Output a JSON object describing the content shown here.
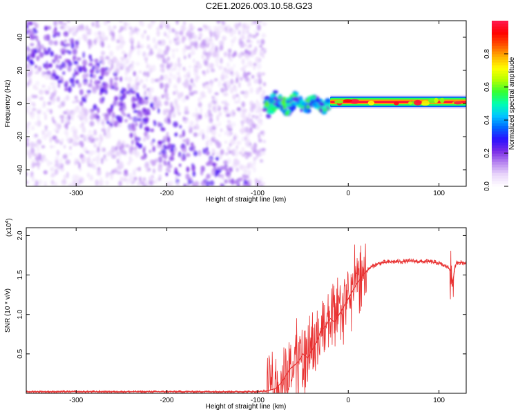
{
  "title": "C2E1.2026.003.10.58.G23",
  "chart_data": [
    {
      "type": "heatmap",
      "xlabel": "Height of straight line (km)",
      "ylabel": "Frequency (Hz)",
      "xlim": [
        -355,
        130
      ],
      "ylim": [
        -50,
        50
      ],
      "x_ticks": [
        -300,
        -200,
        -100,
        0,
        100
      ],
      "y_ticks": [
        -40,
        -20,
        0,
        20,
        40
      ],
      "colorbar": {
        "label": "Normalized spectral amplitude",
        "range": [
          0,
          1
        ],
        "ticks": [
          0.0,
          0.2,
          0.4,
          0.6,
          0.8
        ],
        "colors": [
          "#ffffff",
          "#ead8fb",
          "#b888f0",
          "#7a2be6",
          "#2a10ff",
          "#0066ff",
          "#00c8ff",
          "#00ffb0",
          "#33ff33",
          "#b4ff00",
          "#ffff00",
          "#ffb000",
          "#ff5000",
          "#ff0000",
          "#ff1a50"
        ]
      },
      "regions": [
        {
          "name": "noise",
          "x_range": [
            -355,
            -92
          ],
          "freq_range": [
            -50,
            50
          ],
          "amplitude_range": [
            0.0,
            0.25
          ]
        },
        {
          "name": "signal-onset",
          "x_range": [
            -92,
            -20
          ],
          "freq_center": 0,
          "freq_halfwidth": 6,
          "amplitude_range": [
            0.2,
            0.6
          ]
        },
        {
          "name": "carrier",
          "x_range": [
            -20,
            130
          ],
          "freq_center": 1,
          "freq_halfwidth": 2,
          "amplitude_range": [
            0.6,
            1.0
          ]
        }
      ]
    },
    {
      "type": "line",
      "xlabel": "Height of straight line (km)",
      "ylabel": "SNR (10 * v/v)",
      "ylabel_scale": "(x10",
      "ylabel_exp": "4",
      "xlim": [
        -355,
        130
      ],
      "ylim": [
        0,
        2.1
      ],
      "x_ticks": [
        -300,
        -200,
        -100,
        0,
        100
      ],
      "y_ticks": [
        0.5,
        1.0,
        1.5,
        2.0
      ],
      "y_tick_labels": [
        "0.5",
        "1.0",
        "1.5",
        "2.0"
      ],
      "color": "#e83030",
      "series": [
        {
          "name": "SNR",
          "x": [
            -355,
            -300,
            -250,
            -200,
            -150,
            -100,
            -90,
            -80,
            -75,
            -70,
            -65,
            -60,
            -55,
            -50,
            -45,
            -40,
            -35,
            -30,
            -25,
            -20,
            -15,
            -10,
            -5,
            0,
            5,
            10,
            15,
            20,
            25,
            30,
            35,
            40,
            50,
            60,
            70,
            80,
            90,
            95,
            100,
            105,
            110,
            113,
            115,
            118,
            120,
            125,
            130
          ],
          "y": [
            0.02,
            0.02,
            0.02,
            0.02,
            0.02,
            0.02,
            0.03,
            0.06,
            0.12,
            0.2,
            0.3,
            0.35,
            0.4,
            0.5,
            0.45,
            0.55,
            0.65,
            0.8,
            0.85,
            0.95,
            0.9,
            1.0,
            1.1,
            1.2,
            1.3,
            1.4,
            1.48,
            1.55,
            1.6,
            1.63,
            1.65,
            1.66,
            1.67,
            1.67,
            1.68,
            1.67,
            1.67,
            1.66,
            1.65,
            1.62,
            1.6,
            1.55,
            1.4,
            1.62,
            1.66,
            1.66,
            1.65
          ]
        }
      ]
    }
  ]
}
